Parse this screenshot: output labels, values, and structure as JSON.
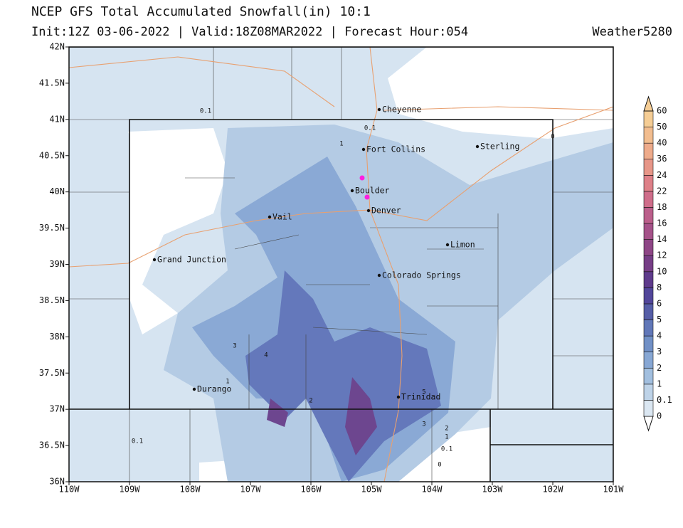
{
  "header": {
    "title": "NCEP GFS Total Accumulated Snowfall(in) 10:1",
    "subtitle": "Init:12Z 03-06-2022 | Valid:18Z08MAR2022 | Forecast Hour:054",
    "credit": "Weather5280"
  },
  "map": {
    "lat_ticks": [
      "42N",
      "41.5N",
      "41N",
      "40.5N",
      "40N",
      "39.5N",
      "39N",
      "38.5N",
      "38N",
      "37.5N",
      "37N",
      "36.5N",
      "36N"
    ],
    "lon_ticks": [
      "110W",
      "109W",
      "108W",
      "107W",
      "106W",
      "105W",
      "104W",
      "103W",
      "102W",
      "101W"
    ],
    "cities": [
      "Cheyenne",
      "Fort Collins",
      "Sterling",
      "Boulder",
      "Denver",
      "Vail",
      "Limon",
      "Grand Junction",
      "Colorado Springs",
      "Durango",
      "Trinidad"
    ],
    "contour_labels": [
      "0.1",
      "0.1",
      "1",
      "0",
      "3",
      "4",
      "1",
      "2",
      "5",
      "3",
      "2",
      "1",
      "0.1",
      "0",
      "0.1"
    ]
  },
  "colorbar": {
    "levels": [
      0,
      0.1,
      1,
      2,
      3,
      4,
      5,
      6,
      8,
      10,
      12,
      14,
      16,
      18,
      22,
      24,
      36,
      40,
      50,
      60
    ],
    "colors": [
      "#ffffff",
      "#dbe7f2",
      "#bed3e8",
      "#a2bfdf",
      "#87a7d4",
      "#7190c6",
      "#6177b8",
      "#565ea7",
      "#52469a",
      "#5f3b8c",
      "#763e86",
      "#8e4686",
      "#a55289",
      "#bb5f8b",
      "#cf6d8a",
      "#de8088",
      "#e79688",
      "#eeab8b",
      "#f2bd8f",
      "#f5cd95"
    ]
  }
}
